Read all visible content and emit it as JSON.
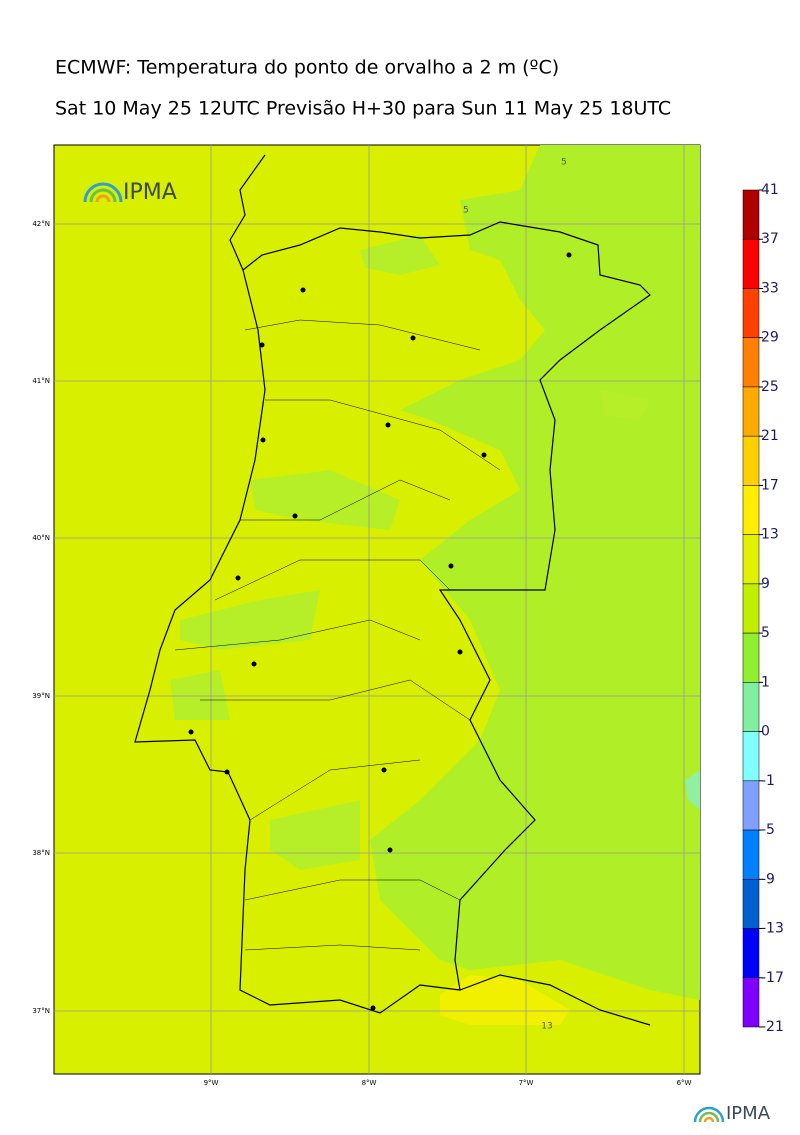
{
  "header": {
    "title": "ECMWF: Temperatura do ponto de orvalho a 2 m (ºC)",
    "subtitle": "Sat 10 May 25 12UTC Previsão H+30 para Sun 11 May 25 18UTC"
  },
  "map": {
    "lat_labels": [
      "42°N",
      "41°N",
      "40°N",
      "39°N",
      "38°N",
      "37°N"
    ],
    "lon_labels": [
      "9°W",
      "8°W",
      "7°W",
      "6°W"
    ],
    "contour_labels": [
      "5",
      "5",
      "13"
    ],
    "logo": "IPMA"
  },
  "colorbar": {
    "labels": [
      41,
      37,
      33,
      29,
      25,
      21,
      17,
      13,
      9,
      5,
      1,
      0,
      -1,
      -5,
      -9,
      -13,
      -17,
      -21
    ],
    "colors": [
      "#b00000",
      "#ff0000",
      "#ff4000",
      "#ff8000",
      "#ffaa00",
      "#ffd000",
      "#ffee00",
      "#e0f200",
      "#c0f000",
      "#90f030",
      "#80f0a0",
      "#80ffff",
      "#80a0ff",
      "#0080ff",
      "#0060d0",
      "#0000ff",
      "#8000ff"
    ]
  },
  "footer": {
    "logo": "IPMA"
  }
}
